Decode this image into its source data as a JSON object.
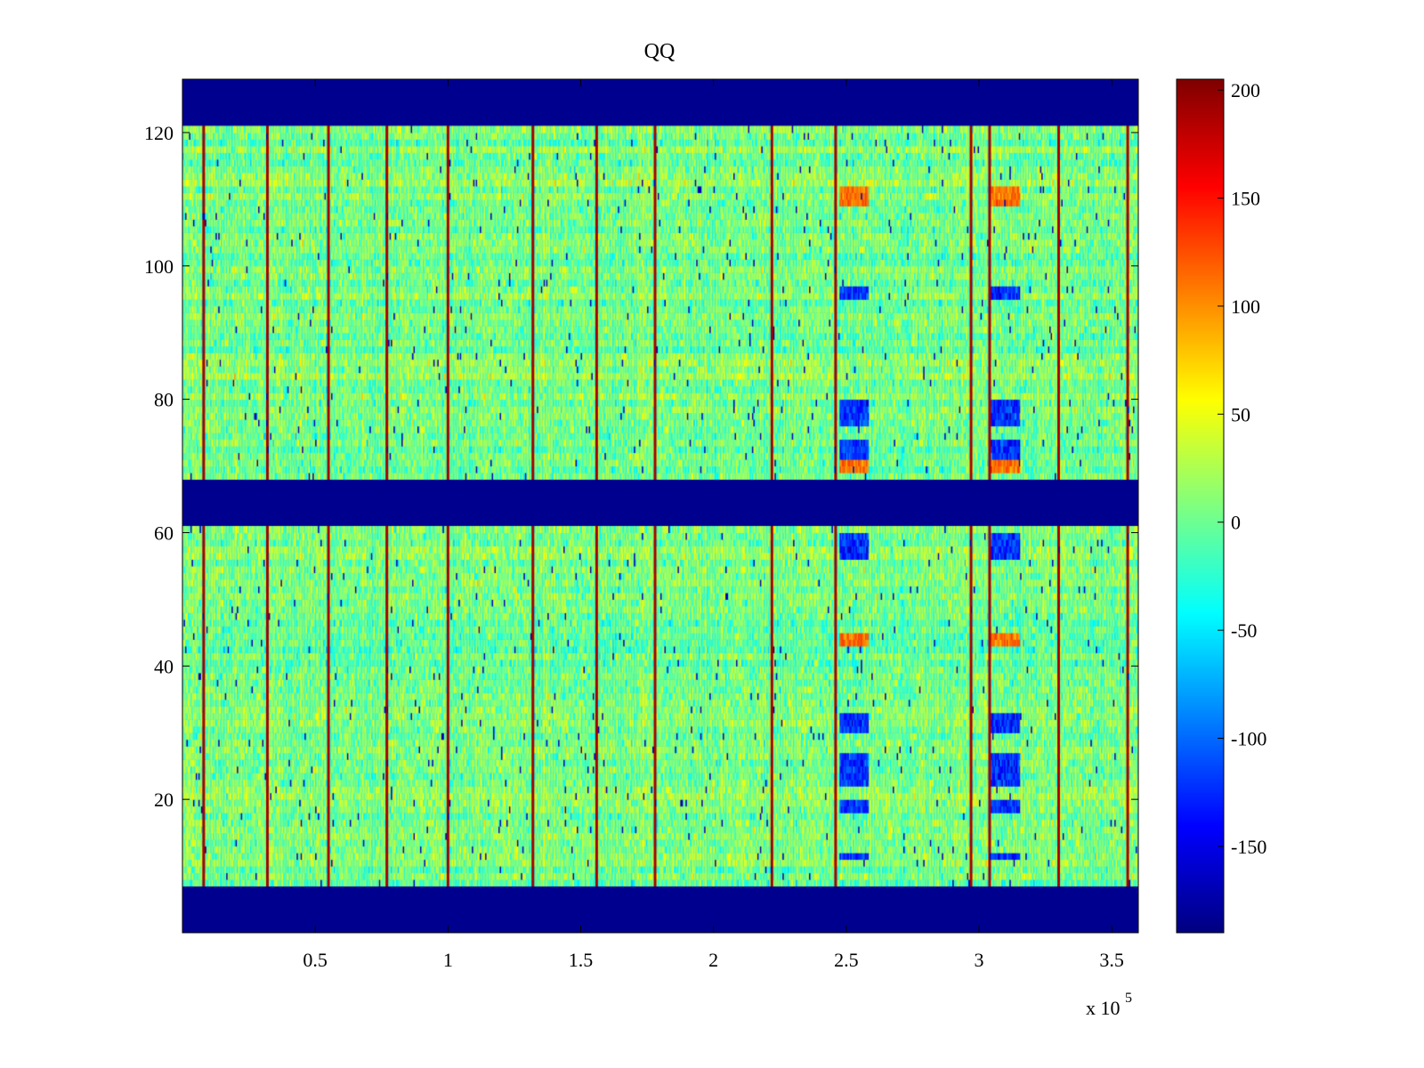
{
  "chart_data": {
    "type": "heatmap",
    "title": "QQ",
    "xlabel": "",
    "ylabel": "",
    "x_exponent_label": "x 10",
    "x_exponent": "5",
    "xlim": [
      0,
      3.6
    ],
    "ylim": [
      0,
      128
    ],
    "x_ticks": [
      0.5,
      1,
      1.5,
      2,
      2.5,
      3,
      3.5
    ],
    "x_tick_labels": [
      "0.5",
      "1",
      "1.5",
      "2",
      "2.5",
      "3",
      "3.5"
    ],
    "y_ticks": [
      20,
      40,
      60,
      80,
      100,
      120
    ],
    "y_tick_labels": [
      "20",
      "40",
      "60",
      "80",
      "100",
      "120"
    ],
    "colormap": "jet",
    "clim": [
      -190,
      205
    ],
    "colorbar_ticks": [
      200,
      150,
      100,
      50,
      0,
      -50,
      -100,
      -150
    ],
    "colorbar_tick_labels": [
      "200",
      "150",
      "100",
      "50",
      "0",
      "-50",
      "-100",
      "-150"
    ],
    "background_value": -190,
    "masked_row_bands": [
      [
        0,
        7
      ],
      [
        61.5,
        68.5
      ],
      [
        121,
        128
      ]
    ],
    "data_row_bands": [
      [
        7,
        61.5
      ],
      [
        68.5,
        121
      ]
    ],
    "strong_positive_columns_x1e5": [
      0.08,
      0.32,
      0.55,
      0.77,
      1.0,
      1.32,
      1.56,
      1.78,
      2.22,
      2.46,
      2.97,
      3.04,
      3.3,
      3.56
    ],
    "blue_patch_columns_x1e5": [
      2.48,
      2.59,
      3.05,
      3.15
    ],
    "blue_patch_rows": [
      [
        11,
        12
      ],
      [
        18,
        20
      ],
      [
        22,
        27
      ],
      [
        30,
        33
      ],
      [
        56,
        60
      ],
      [
        70,
        74
      ],
      [
        76,
        80
      ],
      [
        95,
        97
      ]
    ],
    "hot_patch_rows": [
      [
        43,
        45
      ],
      [
        69,
        71
      ],
      [
        109,
        112
      ]
    ],
    "noise_level": 30,
    "mean_level": 5
  }
}
